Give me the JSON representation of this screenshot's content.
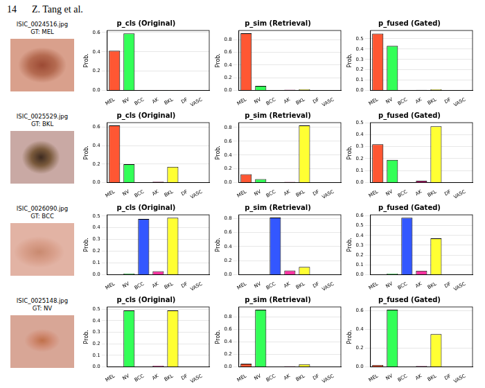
{
  "header": {
    "page": "14",
    "running_title": "Z. Tang et al."
  },
  "images": [
    {
      "file": "ISIC_0024516.jpg",
      "label": "GT: MEL"
    },
    {
      "file": "ISIC_0025529.jpg",
      "label": "GT: BKL"
    },
    {
      "file": "ISIC_0026090.jpg",
      "label": "GT: BCC"
    },
    {
      "file": "ISIC_0025148.jpg",
      "label": "GT: NV"
    }
  ],
  "chart_data": [
    {
      "type": "bar",
      "title": "p_cls (Original)",
      "y_label": "Prob.",
      "categories": [
        "MEL",
        "NV",
        "BCC",
        "AK",
        "BKL",
        "DF",
        "VASC"
      ],
      "values": [
        0.41,
        0.59,
        0.0,
        0.003,
        0.003,
        0.0,
        0.0
      ],
      "colors": [
        "#ff5733",
        "#33ff57",
        "#3357ff",
        "#ff33a1",
        "#ffff33",
        "#33fff5",
        "#a133ff"
      ],
      "ylim": [
        0,
        0.62
      ],
      "yticks": [
        {
          "value": 0,
          "label": "0.0"
        },
        0.2,
        0.4,
        0.6
      ],
      "grid": true
    },
    {
      "type": "bar",
      "title": "p_sim (Retrieval)",
      "y_label": "Prob.",
      "categories": [
        "MEL",
        "NV",
        "BCC",
        "AK",
        "BKL",
        "DF",
        "VASC"
      ],
      "values": [
        0.9,
        0.07,
        0.003,
        0.01,
        0.02,
        0.0,
        0.003
      ],
      "colors": [
        "#ff5733",
        "#33ff57",
        "#3357ff",
        "#ff33a1",
        "#ffff33",
        "#33fff5",
        "#a133ff"
      ],
      "ylim": [
        0,
        0.945
      ],
      "yticks": [
        {
          "value": 0,
          "label": "0.0"
        },
        0.2,
        0.4,
        0.6,
        0.8
      ],
      "grid": true
    },
    {
      "type": "bar",
      "title": "p_fused (Gated)",
      "y_label": "Prob.",
      "categories": [
        "MEL",
        "NV",
        "BCC",
        "AK",
        "BKL",
        "DF",
        "VASC"
      ],
      "values": [
        0.55,
        0.43,
        0.002,
        0.005,
        0.01,
        0.0,
        0.002
      ],
      "colors": [
        "#ff5733",
        "#33ff57",
        "#3357ff",
        "#ff33a1",
        "#ffff33",
        "#33fff5",
        "#a133ff"
      ],
      "ylim": [
        0,
        0.58
      ],
      "yticks": [
        {
          "value": 0,
          "label": "0.0"
        },
        0.1,
        0.2,
        0.3,
        0.4,
        0.5
      ],
      "grid": true
    },
    {
      "type": "bar",
      "title": "p_cls (Original)",
      "y_label": "Prob.",
      "categories": [
        "MEL",
        "NV",
        "BCC",
        "AK",
        "BKL",
        "DF",
        "VASC"
      ],
      "values": [
        0.62,
        0.2,
        0.002,
        0.01,
        0.17,
        0.0,
        0.0
      ],
      "colors": [
        "#ff5733",
        "#33ff57",
        "#3357ff",
        "#ff33a1",
        "#ffff33",
        "#33fff5",
        "#a133ff"
      ],
      "ylim": [
        0,
        0.65
      ],
      "yticks": [
        {
          "value": 0,
          "label": "0.0"
        },
        0.2,
        0.4,
        0.6
      ],
      "grid": true
    },
    {
      "type": "bar",
      "title": "p_sim (Retrieval)",
      "y_label": "Prob.",
      "categories": [
        "MEL",
        "NV",
        "BCC",
        "AK",
        "BKL",
        "DF",
        "VASC"
      ],
      "values": [
        0.12,
        0.05,
        0.003,
        0.01,
        0.83,
        0.0,
        0.0
      ],
      "colors": [
        "#ff5733",
        "#33ff57",
        "#3357ff",
        "#ff33a1",
        "#ffff33",
        "#33fff5",
        "#a133ff"
      ],
      "ylim": [
        0,
        0.87
      ],
      "yticks": [
        {
          "value": 0,
          "label": "0.0"
        },
        0.2,
        0.4,
        0.6,
        0.8
      ],
      "grid": true
    },
    {
      "type": "bar",
      "title": "p_fused (Gated)",
      "y_label": "Prob.",
      "categories": [
        "MEL",
        "NV",
        "BCC",
        "AK",
        "BKL",
        "DF",
        "VASC"
      ],
      "values": [
        0.32,
        0.19,
        0.002,
        0.015,
        0.47,
        0.0,
        0.0
      ],
      "colors": [
        "#ff5733",
        "#33ff57",
        "#3357ff",
        "#ff33a1",
        "#ffff33",
        "#33fff5",
        "#a133ff"
      ],
      "ylim": [
        0,
        0.5
      ],
      "yticks": [
        {
          "value": 0,
          "label": "0.0"
        },
        0.1,
        0.2,
        0.3,
        0.4,
        0.5
      ],
      "grid": true
    },
    {
      "type": "bar",
      "title": "p_cls (Original)",
      "y_label": "Prob.",
      "categories": [
        "MEL",
        "NV",
        "BCC",
        "AK",
        "BKL",
        "DF",
        "VASC"
      ],
      "values": [
        0.0,
        0.01,
        0.475,
        0.03,
        0.485,
        0.0,
        0.0
      ],
      "colors": [
        "#ff5733",
        "#33ff57",
        "#3357ff",
        "#ff33a1",
        "#ffff33",
        "#33fff5",
        "#a133ff"
      ],
      "ylim": [
        0,
        0.51
      ],
      "yticks": [
        {
          "value": 0,
          "label": "0.0"
        },
        0.1,
        0.2,
        0.3,
        0.4,
        0.5
      ],
      "grid": true
    },
    {
      "type": "bar",
      "title": "p_sim (Retrieval)",
      "y_label": "Prob.",
      "categories": [
        "MEL",
        "NV",
        "BCC",
        "AK",
        "BKL",
        "DF",
        "VASC"
      ],
      "values": [
        0.005,
        0.005,
        0.81,
        0.06,
        0.11,
        0.002,
        0.0
      ],
      "colors": [
        "#ff5733",
        "#33ff57",
        "#3357ff",
        "#ff33a1",
        "#ffff33",
        "#33fff5",
        "#a133ff"
      ],
      "ylim": [
        0,
        0.85
      ],
      "yticks": [
        {
          "value": 0,
          "label": "0.0"
        },
        0.2,
        0.4,
        0.6,
        0.8
      ],
      "grid": true
    },
    {
      "type": "bar",
      "title": "p_fused (Gated)",
      "y_label": "Prob.",
      "categories": [
        "MEL",
        "NV",
        "BCC",
        "AK",
        "BKL",
        "DF",
        "VASC"
      ],
      "values": [
        0.002,
        0.01,
        0.58,
        0.04,
        0.37,
        0.0,
        0.0
      ],
      "colors": [
        "#ff5733",
        "#33ff57",
        "#3357ff",
        "#ff33a1",
        "#ffff33",
        "#33fff5",
        "#a133ff"
      ],
      "ylim": [
        0,
        0.61
      ],
      "yticks": [
        {
          "value": 0,
          "label": "0.0"
        },
        0.1,
        0.2,
        0.3,
        0.4,
        0.5,
        0.6
      ],
      "grid": true
    },
    {
      "type": "bar",
      "title": "p_cls (Original)",
      "y_label": "Prob.",
      "categories": [
        "MEL",
        "NV",
        "BCC",
        "AK",
        "BKL",
        "DF",
        "VASC"
      ],
      "values": [
        0.005,
        0.49,
        0.002,
        0.01,
        0.49,
        0.0,
        0.0
      ],
      "colors": [
        "#ff5733",
        "#33ff57",
        "#3357ff",
        "#ff33a1",
        "#ffff33",
        "#33fff5",
        "#a133ff"
      ],
      "ylim": [
        0,
        0.52
      ],
      "yticks": [
        {
          "value": 0,
          "label": "0.0"
        },
        0.1,
        0.2,
        0.3,
        0.4,
        0.5
      ],
      "grid": true
    },
    {
      "type": "bar",
      "title": "p_sim (Retrieval)",
      "y_label": "Prob.",
      "categories": [
        "MEL",
        "NV",
        "BCC",
        "AK",
        "BKL",
        "DF",
        "VASC"
      ],
      "values": [
        0.05,
        0.91,
        0.002,
        0.01,
        0.04,
        0.0,
        0.0
      ],
      "colors": [
        "#ff5733",
        "#33ff57",
        "#3357ff",
        "#ff33a1",
        "#ffff33",
        "#33fff5",
        "#a133ff"
      ],
      "ylim": [
        0,
        0.955
      ],
      "yticks": [
        {
          "value": 0,
          "label": "0.0"
        },
        0.2,
        0.4,
        0.6,
        0.8
      ],
      "grid": true
    },
    {
      "type": "bar",
      "title": "p_fused (Gated)",
      "y_label": "Prob.",
      "categories": [
        "MEL",
        "NV",
        "BCC",
        "AK",
        "BKL",
        "DF",
        "VASC"
      ],
      "values": [
        0.02,
        0.61,
        0.002,
        0.01,
        0.35,
        0.0,
        0.0
      ],
      "colors": [
        "#ff5733",
        "#33ff57",
        "#3357ff",
        "#ff33a1",
        "#ffff33",
        "#33fff5",
        "#a133ff"
      ],
      "ylim": [
        0,
        0.64
      ],
      "yticks": [
        {
          "value": 0,
          "label": "0.0"
        },
        0.2,
        0.4,
        0.6
      ],
      "grid": true
    }
  ]
}
